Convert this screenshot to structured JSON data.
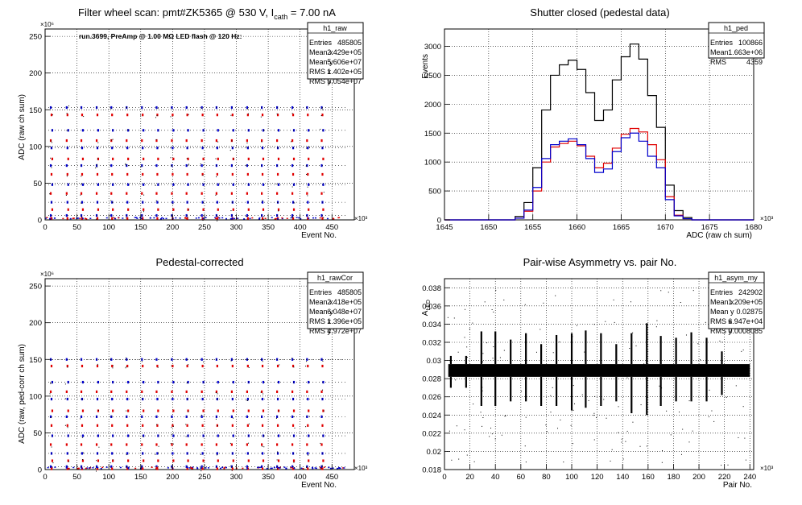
{
  "panels": {
    "raw": {
      "title_main": "Filter wheel scan: pmt#ZK5365 @   530 V, I",
      "title_sub": "cath",
      "title_tail": " = 7.00 nA",
      "annotation": "run.3699, PreAmp @ 1.00 MΩ LED flash @  120 Hz:",
      "ylabel": "ADC (raw ch sum)",
      "xlabel": "Event No.",
      "y_exponent": "×10⁶",
      "x_exponent": "×10³",
      "stats_title": "h1_raw",
      "stats": [
        {
          "label": "Entries",
          "value": "485805"
        },
        {
          "label": "Mean x",
          "value": "2.429e+05"
        },
        {
          "label": "Mean y",
          "value": "5.606e+07"
        },
        {
          "label": "RMS x",
          "value": "1.402e+05"
        },
        {
          "label": "RMS y",
          "value": "5.054e+07"
        }
      ]
    },
    "ped": {
      "title": "Shutter closed (pedestal data)",
      "ylabel": "Events",
      "xlabel": "ADC (raw ch sum)",
      "x_exponent": "×10³",
      "stats_title": "h1_ped",
      "stats": [
        {
          "label": "Entries",
          "value": "100866"
        },
        {
          "label": "Mean",
          "value": "1.663e+06"
        },
        {
          "label": "RMS",
          "value": "4359"
        }
      ]
    },
    "cor": {
      "title": "Pedestal-corrected",
      "ylabel": "ADC (raw, ped-corr ch sum)",
      "xlabel": "Event No.",
      "y_exponent": "×10⁶",
      "x_exponent": "×10³",
      "stats_title": "h1_rawCor",
      "stats": [
        {
          "label": "Entries",
          "value": "485805"
        },
        {
          "label": "Mean x",
          "value": "2.418e+05"
        },
        {
          "label": "Mean y",
          "value": "6.048e+07"
        },
        {
          "label": "RMS x",
          "value": "1.396e+05"
        },
        {
          "label": "RMS y",
          "value": "4.972e+07"
        }
      ]
    },
    "asym": {
      "title": "Pair-wise Asymmetry vs. pair No.",
      "ylabel_main": "A",
      "ylabel_sub": "LED",
      "xlabel": "Pair No.",
      "x_exponent": "×10³",
      "stats_title": "h1_asym_my",
      "stats": [
        {
          "label": "Entries",
          "value": "242902"
        },
        {
          "label": "Mean x",
          "value": "1.209e+05"
        },
        {
          "label": "Mean y",
          "value": "0.02875"
        },
        {
          "label": "RMS x",
          "value": "6.947e+04"
        },
        {
          "label": "RMS y",
          "value": "0.0008085"
        }
      ]
    }
  },
  "colors": {
    "black": "#000000",
    "red": "#e00000",
    "blue": "#0000cc",
    "grid": "#000000"
  },
  "chart_data": [
    {
      "id": "raw",
      "type": "scatter",
      "title": "Filter wheel scan: pmt#ZK5365 @   530 V, I_cath = 7.00 nA",
      "xlabel": "Event No.",
      "ylabel": "ADC (raw ch sum)",
      "xlim": [
        0,
        485
      ],
      "ylim": [
        0,
        260
      ],
      "xticks": [
        0,
        50,
        100,
        150,
        200,
        250,
        300,
        350,
        400,
        450
      ],
      "yticks": [
        0,
        50,
        100,
        150,
        200,
        250
      ],
      "grid": true,
      "band_levels": [
        153,
        143,
        122,
        108,
        98,
        83,
        74,
        62,
        48,
        36,
        24,
        14,
        6,
        2
      ],
      "burst_x": [
        9,
        34,
        57,
        81,
        104,
        128,
        152,
        175,
        199,
        222,
        246,
        269,
        293,
        317,
        340,
        364,
        388,
        411,
        434
      ]
    },
    {
      "id": "ped",
      "type": "line",
      "title": "Shutter closed (pedestal data)",
      "xlabel": "ADC (raw ch sum)",
      "ylabel": "Events",
      "xlim": [
        1645,
        1680
      ],
      "ylim": [
        0,
        3300
      ],
      "xticks": [
        1645,
        1650,
        1655,
        1660,
        1665,
        1670,
        1675,
        1680
      ],
      "yticks": [
        0,
        500,
        1000,
        1500,
        2000,
        2500,
        3000
      ],
      "grid": true,
      "x": [
        1653.5,
        1654.5,
        1655.5,
        1656.5,
        1657.5,
        1658.5,
        1659.5,
        1660.5,
        1661.5,
        1662.5,
        1663.5,
        1664.5,
        1665.5,
        1666.5,
        1667.5,
        1668.5,
        1669.5,
        1670.5,
        1671.5,
        1672.5
      ],
      "series": [
        {
          "color": "black",
          "values": [
            60,
            300,
            900,
            1900,
            2500,
            2680,
            2760,
            2600,
            2200,
            1720,
            1900,
            2420,
            2820,
            3040,
            2780,
            2150,
            1600,
            600,
            160,
            40
          ]
        },
        {
          "color": "red",
          "values": [
            30,
            150,
            500,
            1000,
            1260,
            1320,
            1360,
            1280,
            1100,
            900,
            980,
            1240,
            1480,
            1580,
            1520,
            1300,
            1040,
            400,
            80,
            20
          ]
        },
        {
          "color": "blue",
          "values": [
            30,
            170,
            560,
            1060,
            1300,
            1360,
            1400,
            1300,
            1060,
            820,
            880,
            1180,
            1420,
            1500,
            1360,
            1100,
            900,
            350,
            70,
            20
          ]
        }
      ]
    },
    {
      "id": "cor",
      "type": "scatter",
      "title": "Pedestal-corrected",
      "xlabel": "Event No.",
      "ylabel": "ADC (raw, ped-corr ch sum)",
      "xlim": [
        0,
        485
      ],
      "ylim": [
        0,
        260
      ],
      "xticks": [
        0,
        50,
        100,
        150,
        200,
        250,
        300,
        350,
        400,
        450
      ],
      "yticks": [
        0,
        50,
        100,
        150,
        200,
        250
      ],
      "grid": true,
      "band_levels": [
        150,
        141,
        119,
        106,
        96,
        80,
        72,
        60,
        46,
        34,
        22,
        12,
        4,
        1
      ],
      "burst_x": [
        9,
        34,
        57,
        81,
        104,
        128,
        152,
        175,
        199,
        222,
        246,
        269,
        293,
        317,
        340,
        364,
        388,
        411,
        434
      ]
    },
    {
      "id": "asym",
      "type": "scatter",
      "title": "Pair-wise Asymmetry vs. pair No.",
      "xlabel": "Pair No.",
      "ylabel": "A_LED",
      "xlim": [
        0,
        243
      ],
      "ylim": [
        0.018,
        0.039
      ],
      "xticks": [
        0,
        20,
        40,
        60,
        80,
        100,
        120,
        140,
        160,
        180,
        200,
        220,
        240
      ],
      "yticks": [
        0.018,
        0.02,
        0.022,
        0.024,
        0.026,
        0.028,
        0.03,
        0.032,
        0.034,
        0.036,
        0.038
      ],
      "grid": true,
      "band_center": 0.0289,
      "band_halfwidth": 0.0007,
      "spike_x": [
        5,
        17,
        29,
        40,
        52,
        64,
        76,
        88,
        100,
        111,
        123,
        135,
        147,
        159,
        170,
        182,
        194,
        206,
        218
      ],
      "spike_up": [
        0.0305,
        0.0305,
        0.0332,
        0.0332,
        0.0323,
        0.033,
        0.0318,
        0.0328,
        0.033,
        0.0333,
        0.033,
        0.0318,
        0.033,
        0.0341,
        0.0327,
        0.0325,
        0.0331,
        0.0325,
        0.031
      ],
      "spike_down": [
        0.027,
        0.027,
        0.025,
        0.025,
        0.0255,
        0.0255,
        0.025,
        0.025,
        0.0245,
        0.0248,
        0.025,
        0.0255,
        0.0242,
        0.024,
        0.025,
        0.0255,
        0.0255,
        0.0255,
        0.0262
      ]
    }
  ]
}
